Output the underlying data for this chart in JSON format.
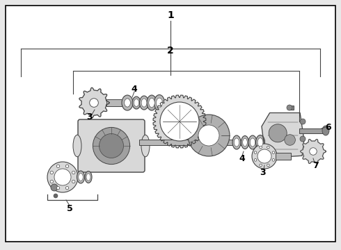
{
  "bg_color": "#e8e8e8",
  "border_color": "#000000",
  "line_color": "#444444",
  "text_color": "#000000",
  "part_fill": "#d8d8d8",
  "part_dark": "#888888",
  "part_mid": "#b8b8b8",
  "white": "#ffffff",
  "figsize": [
    4.9,
    3.6
  ],
  "dpi": 100
}
